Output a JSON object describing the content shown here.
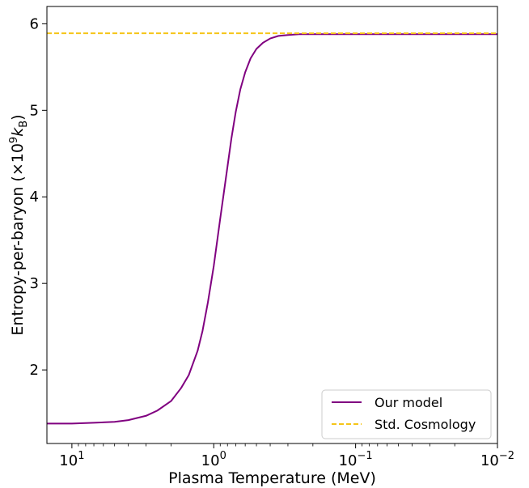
{
  "chart_data": {
    "type": "line",
    "xlabel": "Plasma Temperature (MeV)",
    "ylabel": "Entropy-per-baryon (×10⁹k_B)",
    "ylabel_parts": {
      "main": "Entropy-per-baryon (×10",
      "exp": "9",
      "k": "k",
      "sub": "B",
      "close": ")"
    },
    "x_scale": "log",
    "x_reversed": true,
    "xlim": [
      15,
      0.01
    ],
    "ylim": [
      1.15,
      6.2
    ],
    "grid": false,
    "legend_position": "lower-right",
    "x_ticks": [
      {
        "value": 10,
        "base": "10",
        "exp": "1"
      },
      {
        "value": 1,
        "base": "10",
        "exp": "0"
      },
      {
        "value": 0.1,
        "base": "10",
        "exp": "−1"
      },
      {
        "value": 0.01,
        "base": "10",
        "exp": "−2"
      }
    ],
    "y_ticks": [
      {
        "value": 2,
        "label": "2"
      },
      {
        "value": 3,
        "label": "3"
      },
      {
        "value": 4,
        "label": "4"
      },
      {
        "value": 5,
        "label": "5"
      },
      {
        "value": 6,
        "label": "6"
      }
    ],
    "series": [
      {
        "name": "Our model",
        "color": "#800080",
        "style": "solid",
        "x": [
          15,
          10,
          7,
          5,
          4,
          3,
          2.5,
          2,
          1.7,
          1.5,
          1.3,
          1.2,
          1.1,
          1.0,
          0.9,
          0.8,
          0.75,
          0.7,
          0.65,
          0.6,
          0.55,
          0.5,
          0.45,
          0.4,
          0.35,
          0.3,
          0.25,
          0.2,
          0.15,
          0.1,
          0.05,
          0.01
        ],
        "y": [
          1.38,
          1.38,
          1.39,
          1.4,
          1.42,
          1.47,
          1.53,
          1.64,
          1.79,
          1.94,
          2.22,
          2.45,
          2.78,
          3.2,
          3.75,
          4.35,
          4.68,
          4.98,
          5.24,
          5.44,
          5.6,
          5.71,
          5.78,
          5.83,
          5.86,
          5.87,
          5.88,
          5.88,
          5.88,
          5.88,
          5.88,
          5.88
        ]
      },
      {
        "name": "Std. Cosmology",
        "color": "#f5c518",
        "style": "dashed",
        "x": [
          15,
          0.01
        ],
        "y": [
          5.89,
          5.89
        ]
      }
    ]
  }
}
